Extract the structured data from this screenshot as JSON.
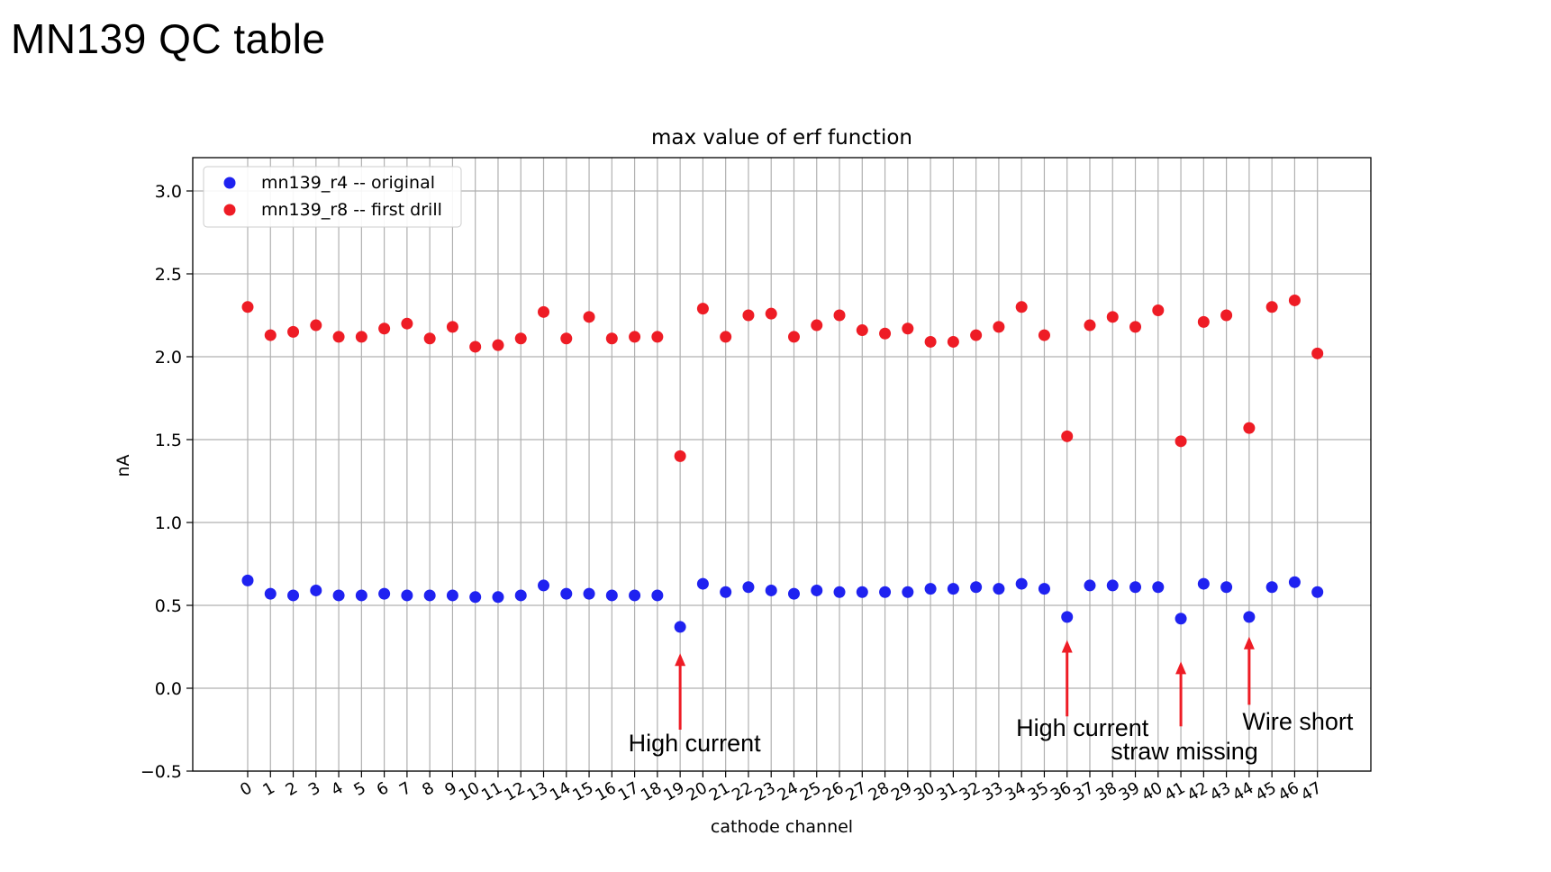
{
  "slide": {
    "title": "MN139 QC table"
  },
  "chart_data": {
    "type": "scatter",
    "title": "max value of erf function",
    "xlabel": "cathode channel",
    "ylabel": "nA",
    "ylim": [
      -0.5,
      3.2
    ],
    "yticks": [
      -0.5,
      0.0,
      0.5,
      1.0,
      1.5,
      2.0,
      2.5,
      3.0
    ],
    "ytick_labels": [
      "−0.5",
      "0.0",
      "0.5",
      "1.0",
      "1.5",
      "2.0",
      "2.5",
      "3.0"
    ],
    "x": [
      0,
      1,
      2,
      3,
      4,
      5,
      6,
      7,
      8,
      9,
      10,
      11,
      12,
      13,
      14,
      15,
      16,
      17,
      18,
      19,
      20,
      21,
      22,
      23,
      24,
      25,
      26,
      27,
      28,
      29,
      30,
      31,
      32,
      33,
      34,
      35,
      36,
      37,
      38,
      39,
      40,
      41,
      42,
      43,
      44,
      45,
      46,
      47
    ],
    "grid": true,
    "legend_position": "upper-left",
    "series": [
      {
        "name": "mn139_r4 -- original",
        "color": "#1f22f0",
        "values": [
          0.65,
          0.57,
          0.56,
          0.59,
          0.56,
          0.56,
          0.57,
          0.56,
          0.56,
          0.56,
          0.55,
          0.55,
          0.56,
          0.62,
          0.57,
          0.57,
          0.56,
          0.56,
          0.56,
          0.37,
          0.63,
          0.58,
          0.61,
          0.59,
          0.57,
          0.59,
          0.58,
          0.58,
          0.58,
          0.58,
          0.6,
          0.6,
          0.61,
          0.6,
          0.63,
          0.6,
          0.43,
          0.62,
          0.62,
          0.61,
          0.61,
          0.42,
          0.63,
          0.61,
          0.43,
          0.61,
          0.64,
          0.58
        ]
      },
      {
        "name": "mn139_r8 -- first drill",
        "color": "#ee1c25",
        "values": [
          2.3,
          2.13,
          2.15,
          2.19,
          2.12,
          2.12,
          2.17,
          2.2,
          2.11,
          2.18,
          2.06,
          2.07,
          2.11,
          2.27,
          2.11,
          2.24,
          2.11,
          2.12,
          2.12,
          1.4,
          2.29,
          2.12,
          2.25,
          2.26,
          2.12,
          2.19,
          2.25,
          2.16,
          2.14,
          2.17,
          2.09,
          2.09,
          2.13,
          2.18,
          2.3,
          2.13,
          1.52,
          2.19,
          2.24,
          2.18,
          2.28,
          1.49,
          2.21,
          2.25,
          1.57,
          2.3,
          2.34,
          2.02
        ]
      }
    ],
    "annotations": [
      {
        "text": "High current",
        "channel": 19,
        "arrow_from": -0.25,
        "arrow_to": 0.2
      },
      {
        "text": "High current",
        "channel": 36,
        "arrow_from": -0.17,
        "arrow_to": 0.28
      },
      {
        "text": "straw missing",
        "channel": 41,
        "arrow_from": -0.23,
        "arrow_to": 0.15
      },
      {
        "text": "Wire short",
        "channel": 44,
        "arrow_from": -0.1,
        "arrow_to": 0.3
      }
    ],
    "annotation_color": "#ee1c25"
  }
}
